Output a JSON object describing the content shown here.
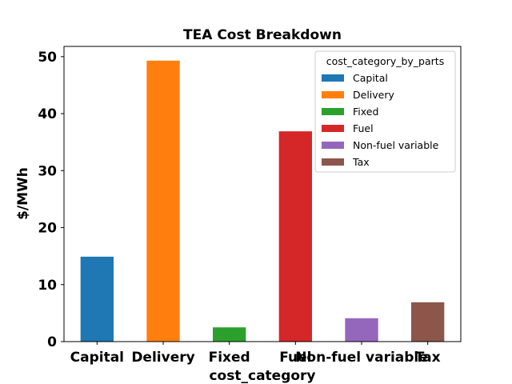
{
  "chart_data": {
    "type": "bar",
    "title": "TEA Cost Breakdown",
    "xlabel": "cost_category",
    "ylabel": "$/MWh",
    "categories": [
      "Capital",
      "Delivery",
      "Fixed",
      "Fuel",
      "Non-fuel variable",
      "Tax"
    ],
    "values": [
      14.9,
      49.3,
      2.5,
      36.9,
      4.1,
      6.9
    ],
    "colors": [
      "#1f77b4",
      "#ff7f0e",
      "#2ca02c",
      "#d62728",
      "#9467bd",
      "#8c564b"
    ],
    "ylim": [
      0,
      51.8
    ],
    "yticks": [
      0,
      10,
      20,
      30,
      40,
      50
    ],
    "grid": false,
    "legend": {
      "title": "cost_category_by_parts",
      "placement": "top-right",
      "entries": [
        "Capital",
        "Delivery",
        "Fixed",
        "Fuel",
        "Non-fuel variable",
        "Tax"
      ]
    }
  }
}
